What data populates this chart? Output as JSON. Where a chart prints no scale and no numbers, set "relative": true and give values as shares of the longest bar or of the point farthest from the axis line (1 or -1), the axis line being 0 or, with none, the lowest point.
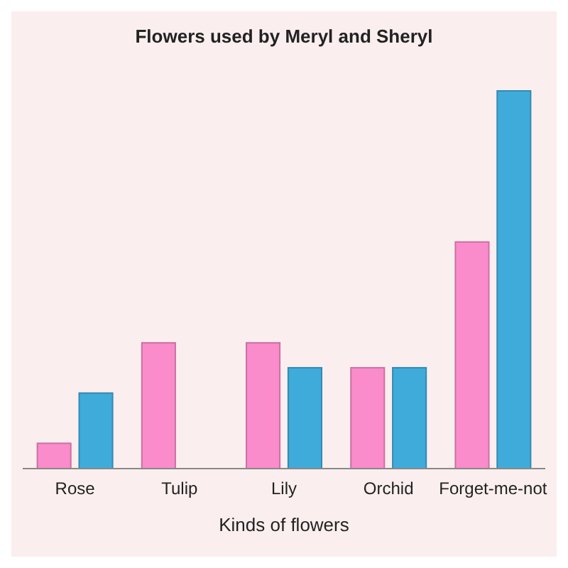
{
  "chart_data": {
    "type": "bar",
    "title": "Flowers used by Meryl and Sheryl",
    "xlabel": "Kinds of flowers",
    "relative": true,
    "categories": [
      "Rose",
      "Tulip",
      "Lily",
      "Orchid",
      "Forget-me-not"
    ],
    "series": [
      {
        "color": "#fa8ccb",
        "values": [
          0.067,
          0.333,
          0.333,
          0.267,
          0.6
        ]
      },
      {
        "color": "#3fabdb",
        "values": [
          0.2,
          0,
          0.267,
          0.267,
          1
        ]
      }
    ]
  }
}
